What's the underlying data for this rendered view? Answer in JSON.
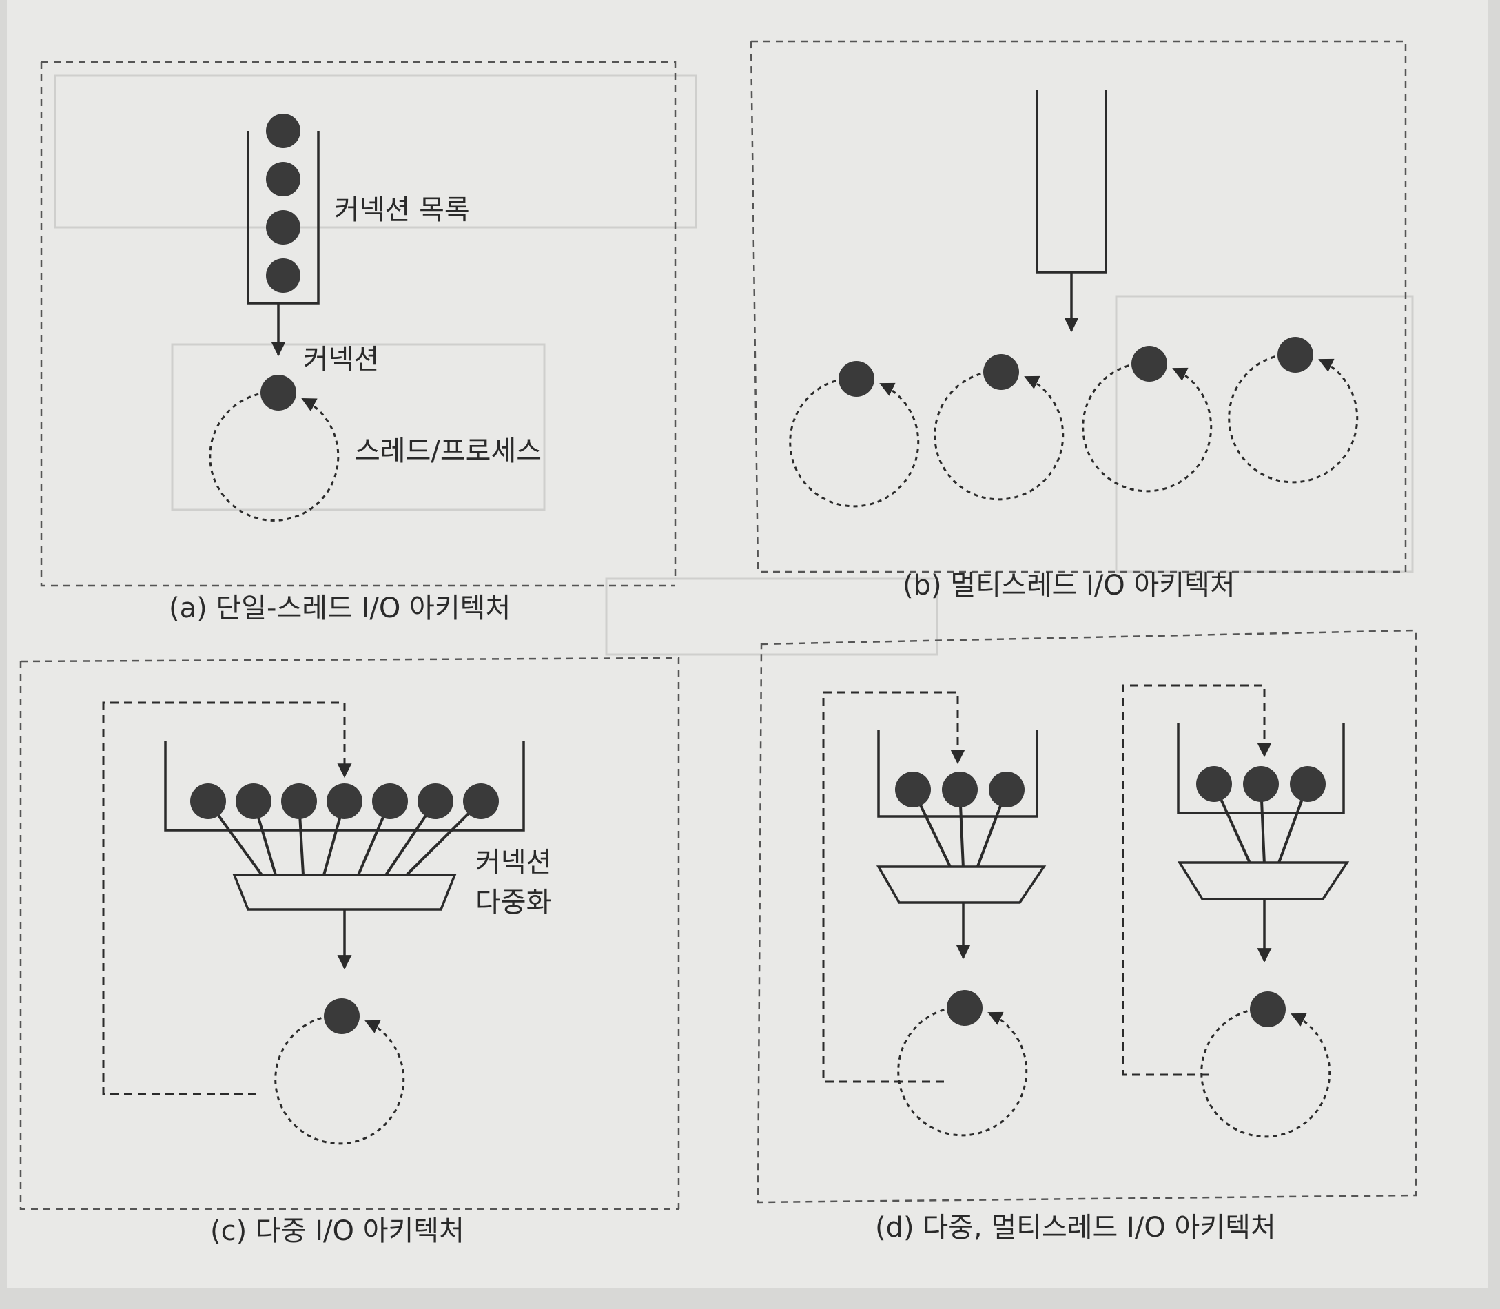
{
  "panel_a": {
    "caption": "(a) 단일-스레드 I/O 아키텍처",
    "label_list": "커넥션 목록",
    "label_connection": "커넥션",
    "label_thread": "스레드/프로세스"
  },
  "panel_b": {
    "caption": "(b) 멀티스레드 I/O 아키텍처"
  },
  "panel_c": {
    "caption": "(c) 다중 I/O 아키텍처",
    "label_mux_line1": "커넥션",
    "label_mux_line2": "다중화"
  },
  "panel_d": {
    "caption": "(d) 다중, 멀티스레드 I/O 아키텍처"
  },
  "colors": {
    "background": "#d8d8d6",
    "page": "#e9e9e7",
    "ink": "#2b2b2b",
    "ball": "#3a3a3a",
    "ghost": "#c9c9c7"
  }
}
